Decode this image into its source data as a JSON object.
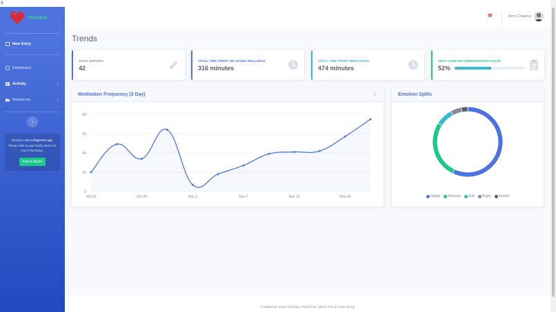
{
  "top_corner_text": "3",
  "brand": {
    "name": "MENDA"
  },
  "sidebar": {
    "new_entry": "New Entry",
    "items": [
      {
        "label": "Dashboard"
      },
      {
        "label": "Activity"
      },
      {
        "label": "Resources"
      }
    ],
    "toggle_glyph": "‹",
    "notice": {
      "part1": "Menda is ",
      "bold": "not a diagnosis app",
      "part2": ". Please refer to your family doctor for more information.",
      "button": "Find a doctor"
    }
  },
  "topbar": {
    "alert_count": "3+",
    "user_name": "Amit Chakma"
  },
  "page": {
    "title": "Trends"
  },
  "stats": [
    {
      "label": "Total Entries",
      "value": "42",
      "color": "#4e73df",
      "icon": "pencil-icon"
    },
    {
      "label": "Total Time Spent on Sound Wellness",
      "value": "316 minutes",
      "color": "#4e73df",
      "icon": "clock-icon"
    },
    {
      "label": "Total Time Spent Meditating",
      "value": "474 minutes",
      "color": "#36b9cc",
      "icon": "clock-icon"
    },
    {
      "label": "Self-Care Recommendation Usage",
      "value": "52%",
      "progress": 0.52,
      "color": "#1cc88a",
      "icon": "clipboard-icon"
    }
  ],
  "meditation": {
    "title": "Meditation Frequency (3 Day)",
    "chart_data": {
      "type": "line",
      "x": [
        "Oct 20",
        "Oct 23",
        "Oct 26",
        "Oct 29",
        "Nov 1",
        "Nov 4",
        "Nov 7",
        "Nov 10",
        "Nov 13",
        "Nov 16",
        "Nov 19",
        "Nov 22"
      ],
      "x_tick_labels": [
        "Oct 20",
        "Oct 26",
        "Nov 1",
        "Nov 7",
        "Nov 13",
        "Nov 19"
      ],
      "values": [
        20,
        49,
        34,
        64,
        7,
        18,
        27,
        39,
        41,
        42,
        57,
        75
      ],
      "ylim": [
        0,
        80
      ],
      "y_ticks": [
        0,
        20,
        40,
        60,
        80
      ],
      "color": "#4e73df",
      "grid": "horizontal"
    }
  },
  "emotions": {
    "title": "Emotion Splits",
    "chart_data": {
      "type": "pie",
      "style": "doughnut",
      "labels": [
        "Happy",
        "Nervous",
        "Sad",
        "Angry",
        "Fearful"
      ],
      "values": [
        57,
        27,
        8,
        5,
        3
      ],
      "colors": [
        "#4e73df",
        "#1cc88a",
        "#36b9cc",
        "#858796",
        "#5a5c69"
      ],
      "legend": "bottom"
    }
  },
  "footer": {
    "text": "Created by: Kevin Cheung, Fland Pan, Oliver Pan & Evan Wong"
  }
}
